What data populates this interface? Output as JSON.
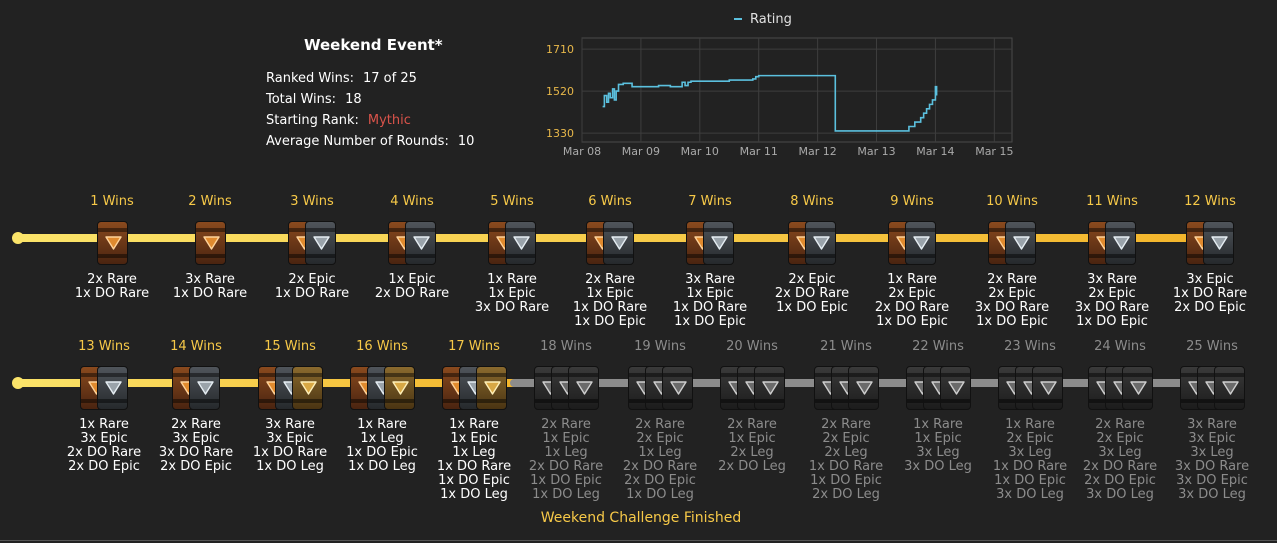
{
  "summary": {
    "title": "Weekend Event*",
    "stats": [
      {
        "label": "Ranked Wins:",
        "value": "17 of 25"
      },
      {
        "label": "Total Wins:",
        "value": "18"
      },
      {
        "label": "Starting Rank:",
        "value": "Mythic",
        "color": "#d9534a"
      },
      {
        "label": "Average Number of Rounds:",
        "value": "10"
      }
    ]
  },
  "chart_data": {
    "type": "line",
    "title": "",
    "legend": [
      "Rating"
    ],
    "legend_position": "top-center",
    "xlabel": "",
    "ylabel": "",
    "x_ticks": [
      "Mar 08",
      "Mar 09",
      "Mar 10",
      "Mar 11",
      "Mar 12",
      "Mar 13",
      "Mar 14",
      "Mar 15"
    ],
    "y_ticks": [
      1330,
      1520,
      1710
    ],
    "ylim": [
      1290,
      1760
    ],
    "grid": true,
    "series": [
      {
        "name": "Rating",
        "color": "#5bc0de",
        "x": [
          8.35,
          8.38,
          8.42,
          8.45,
          8.48,
          8.52,
          8.55,
          8.58,
          8.62,
          8.7,
          8.85,
          9.1,
          9.3,
          9.5,
          9.65,
          9.7,
          9.75,
          9.8,
          9.85,
          10.0,
          10.5,
          10.9,
          10.95,
          11.0,
          12.0,
          12.25,
          12.3,
          13.2,
          13.5,
          13.55,
          13.65,
          13.75,
          13.8,
          13.85,
          13.9,
          13.95,
          14.0,
          14.02
        ],
        "y": [
          1450,
          1500,
          1470,
          1510,
          1490,
          1530,
          1480,
          1520,
          1550,
          1555,
          1540,
          1540,
          1545,
          1540,
          1540,
          1560,
          1545,
          1560,
          1565,
          1565,
          1570,
          1575,
          1585,
          1590,
          1590,
          1590,
          1340,
          1340,
          1340,
          1360,
          1380,
          1400,
          1420,
          1440,
          1460,
          1480,
          1540,
          1500
        ]
      }
    ]
  },
  "track": {
    "completed_color": "#f7c948",
    "locked_color": "#8c8c8c",
    "finished_text": "Weekend Challenge Finished",
    "slots": [
      {
        "wins": "1 Wins",
        "rewards": [
          "2x Rare",
          "1x DO Rare"
        ],
        "chests": [
          "rare"
        ]
      },
      {
        "wins": "2 Wins",
        "rewards": [
          "3x Rare",
          "1x DO Rare"
        ],
        "chests": [
          "rare"
        ]
      },
      {
        "wins": "3 Wins",
        "rewards": [
          "2x Epic",
          "1x DO Rare"
        ],
        "chests": [
          "rare",
          "epic"
        ]
      },
      {
        "wins": "4 Wins",
        "rewards": [
          "1x Epic",
          "2x DO Rare"
        ],
        "chests": [
          "rare",
          "epic"
        ]
      },
      {
        "wins": "5 Wins",
        "rewards": [
          "1x Rare",
          "1x Epic",
          "3x DO Rare"
        ],
        "chests": [
          "rare",
          "epic"
        ]
      },
      {
        "wins": "6 Wins",
        "rewards": [
          "2x Rare",
          "1x Epic",
          "1x DO Rare",
          "1x DO Epic"
        ],
        "chests": [
          "rare",
          "epic"
        ]
      },
      {
        "wins": "7 Wins",
        "rewards": [
          "3x Rare",
          "1x Epic",
          "1x DO Rare",
          "1x DO Epic"
        ],
        "chests": [
          "rare",
          "epic"
        ]
      },
      {
        "wins": "8 Wins",
        "rewards": [
          "2x Epic",
          "2x DO Rare",
          "1x DO Epic"
        ],
        "chests": [
          "rare",
          "epic"
        ]
      },
      {
        "wins": "9 Wins",
        "rewards": [
          "1x Rare",
          "2x Epic",
          "2x DO Rare",
          "1x DO Epic"
        ],
        "chests": [
          "rare",
          "epic"
        ]
      },
      {
        "wins": "10 Wins",
        "rewards": [
          "2x Rare",
          "2x Epic",
          "3x DO Rare",
          "1x DO Epic"
        ],
        "chests": [
          "rare",
          "epic"
        ]
      },
      {
        "wins": "11 Wins",
        "rewards": [
          "3x Rare",
          "2x Epic",
          "3x DO Rare",
          "1x DO Epic"
        ],
        "chests": [
          "rare",
          "epic"
        ]
      },
      {
        "wins": "12 Wins",
        "rewards": [
          "3x Epic",
          "1x DO Rare",
          "2x DO Epic"
        ],
        "chests": [
          "rare",
          "epic"
        ]
      },
      {
        "wins": "13 Wins",
        "rewards": [
          "1x Rare",
          "3x Epic",
          "2x DO Rare",
          "2x DO Epic"
        ],
        "chests": [
          "rare",
          "epic"
        ]
      },
      {
        "wins": "14 Wins",
        "rewards": [
          "2x Rare",
          "3x Epic",
          "3x DO Rare",
          "2x DO Epic"
        ],
        "chests": [
          "rare",
          "epic"
        ]
      },
      {
        "wins": "15 Wins",
        "rewards": [
          "3x Rare",
          "3x Epic",
          "1x DO Rare",
          "1x DO Leg"
        ],
        "chests": [
          "rare",
          "epic",
          "leg"
        ]
      },
      {
        "wins": "16 Wins",
        "rewards": [
          "1x Rare",
          "1x Leg",
          "1x DO Epic",
          "1x DO Leg"
        ],
        "chests": [
          "rare",
          "epic",
          "leg"
        ]
      },
      {
        "wins": "17 Wins",
        "rewards": [
          "1x Rare",
          "1x Epic",
          "1x Leg",
          "1x DO Rare",
          "1x DO Epic",
          "1x DO Leg"
        ],
        "chests": [
          "rare",
          "epic",
          "leg"
        ]
      },
      {
        "wins": "18 Wins",
        "rewards": [
          "2x Rare",
          "1x Epic",
          "1x Leg",
          "2x DO Rare",
          "1x DO Epic",
          "1x DO Leg"
        ],
        "chests": [
          "rare",
          "epic",
          "leg"
        ]
      },
      {
        "wins": "19 Wins",
        "rewards": [
          "2x Rare",
          "2x Epic",
          "1x Leg",
          "2x DO Rare",
          "2x DO Epic",
          "1x DO Leg"
        ],
        "chests": [
          "rare",
          "epic",
          "leg"
        ]
      },
      {
        "wins": "20 Wins",
        "rewards": [
          "2x Rare",
          "1x Epic",
          "2x Leg",
          "2x DO Leg"
        ],
        "chests": [
          "rare",
          "epic",
          "leg"
        ]
      },
      {
        "wins": "21 Wins",
        "rewards": [
          "2x Rare",
          "2x Epic",
          "2x Leg",
          "1x DO Rare",
          "1x DO Epic",
          "2x DO Leg"
        ],
        "chests": [
          "rare",
          "epic",
          "leg"
        ]
      },
      {
        "wins": "22 Wins",
        "rewards": [
          "1x Rare",
          "1x Epic",
          "3x Leg",
          "3x DO Leg"
        ],
        "chests": [
          "rare",
          "epic",
          "leg"
        ]
      },
      {
        "wins": "23 Wins",
        "rewards": [
          "1x Rare",
          "2x Epic",
          "3x Leg",
          "1x DO Rare",
          "1x DO Epic",
          "3x DO Leg"
        ],
        "chests": [
          "rare",
          "epic",
          "leg"
        ]
      },
      {
        "wins": "24 Wins",
        "rewards": [
          "2x Rare",
          "2x Epic",
          "3x Leg",
          "2x DO Rare",
          "2x DO Epic",
          "3x DO Leg"
        ],
        "chests": [
          "rare",
          "epic",
          "leg"
        ]
      },
      {
        "wins": "25 Wins",
        "rewards": [
          "3x Rare",
          "3x Epic",
          "3x Leg",
          "3x DO Rare",
          "3x DO Epic",
          "3x DO Leg"
        ],
        "chests": [
          "rare",
          "epic",
          "leg"
        ]
      }
    ]
  }
}
